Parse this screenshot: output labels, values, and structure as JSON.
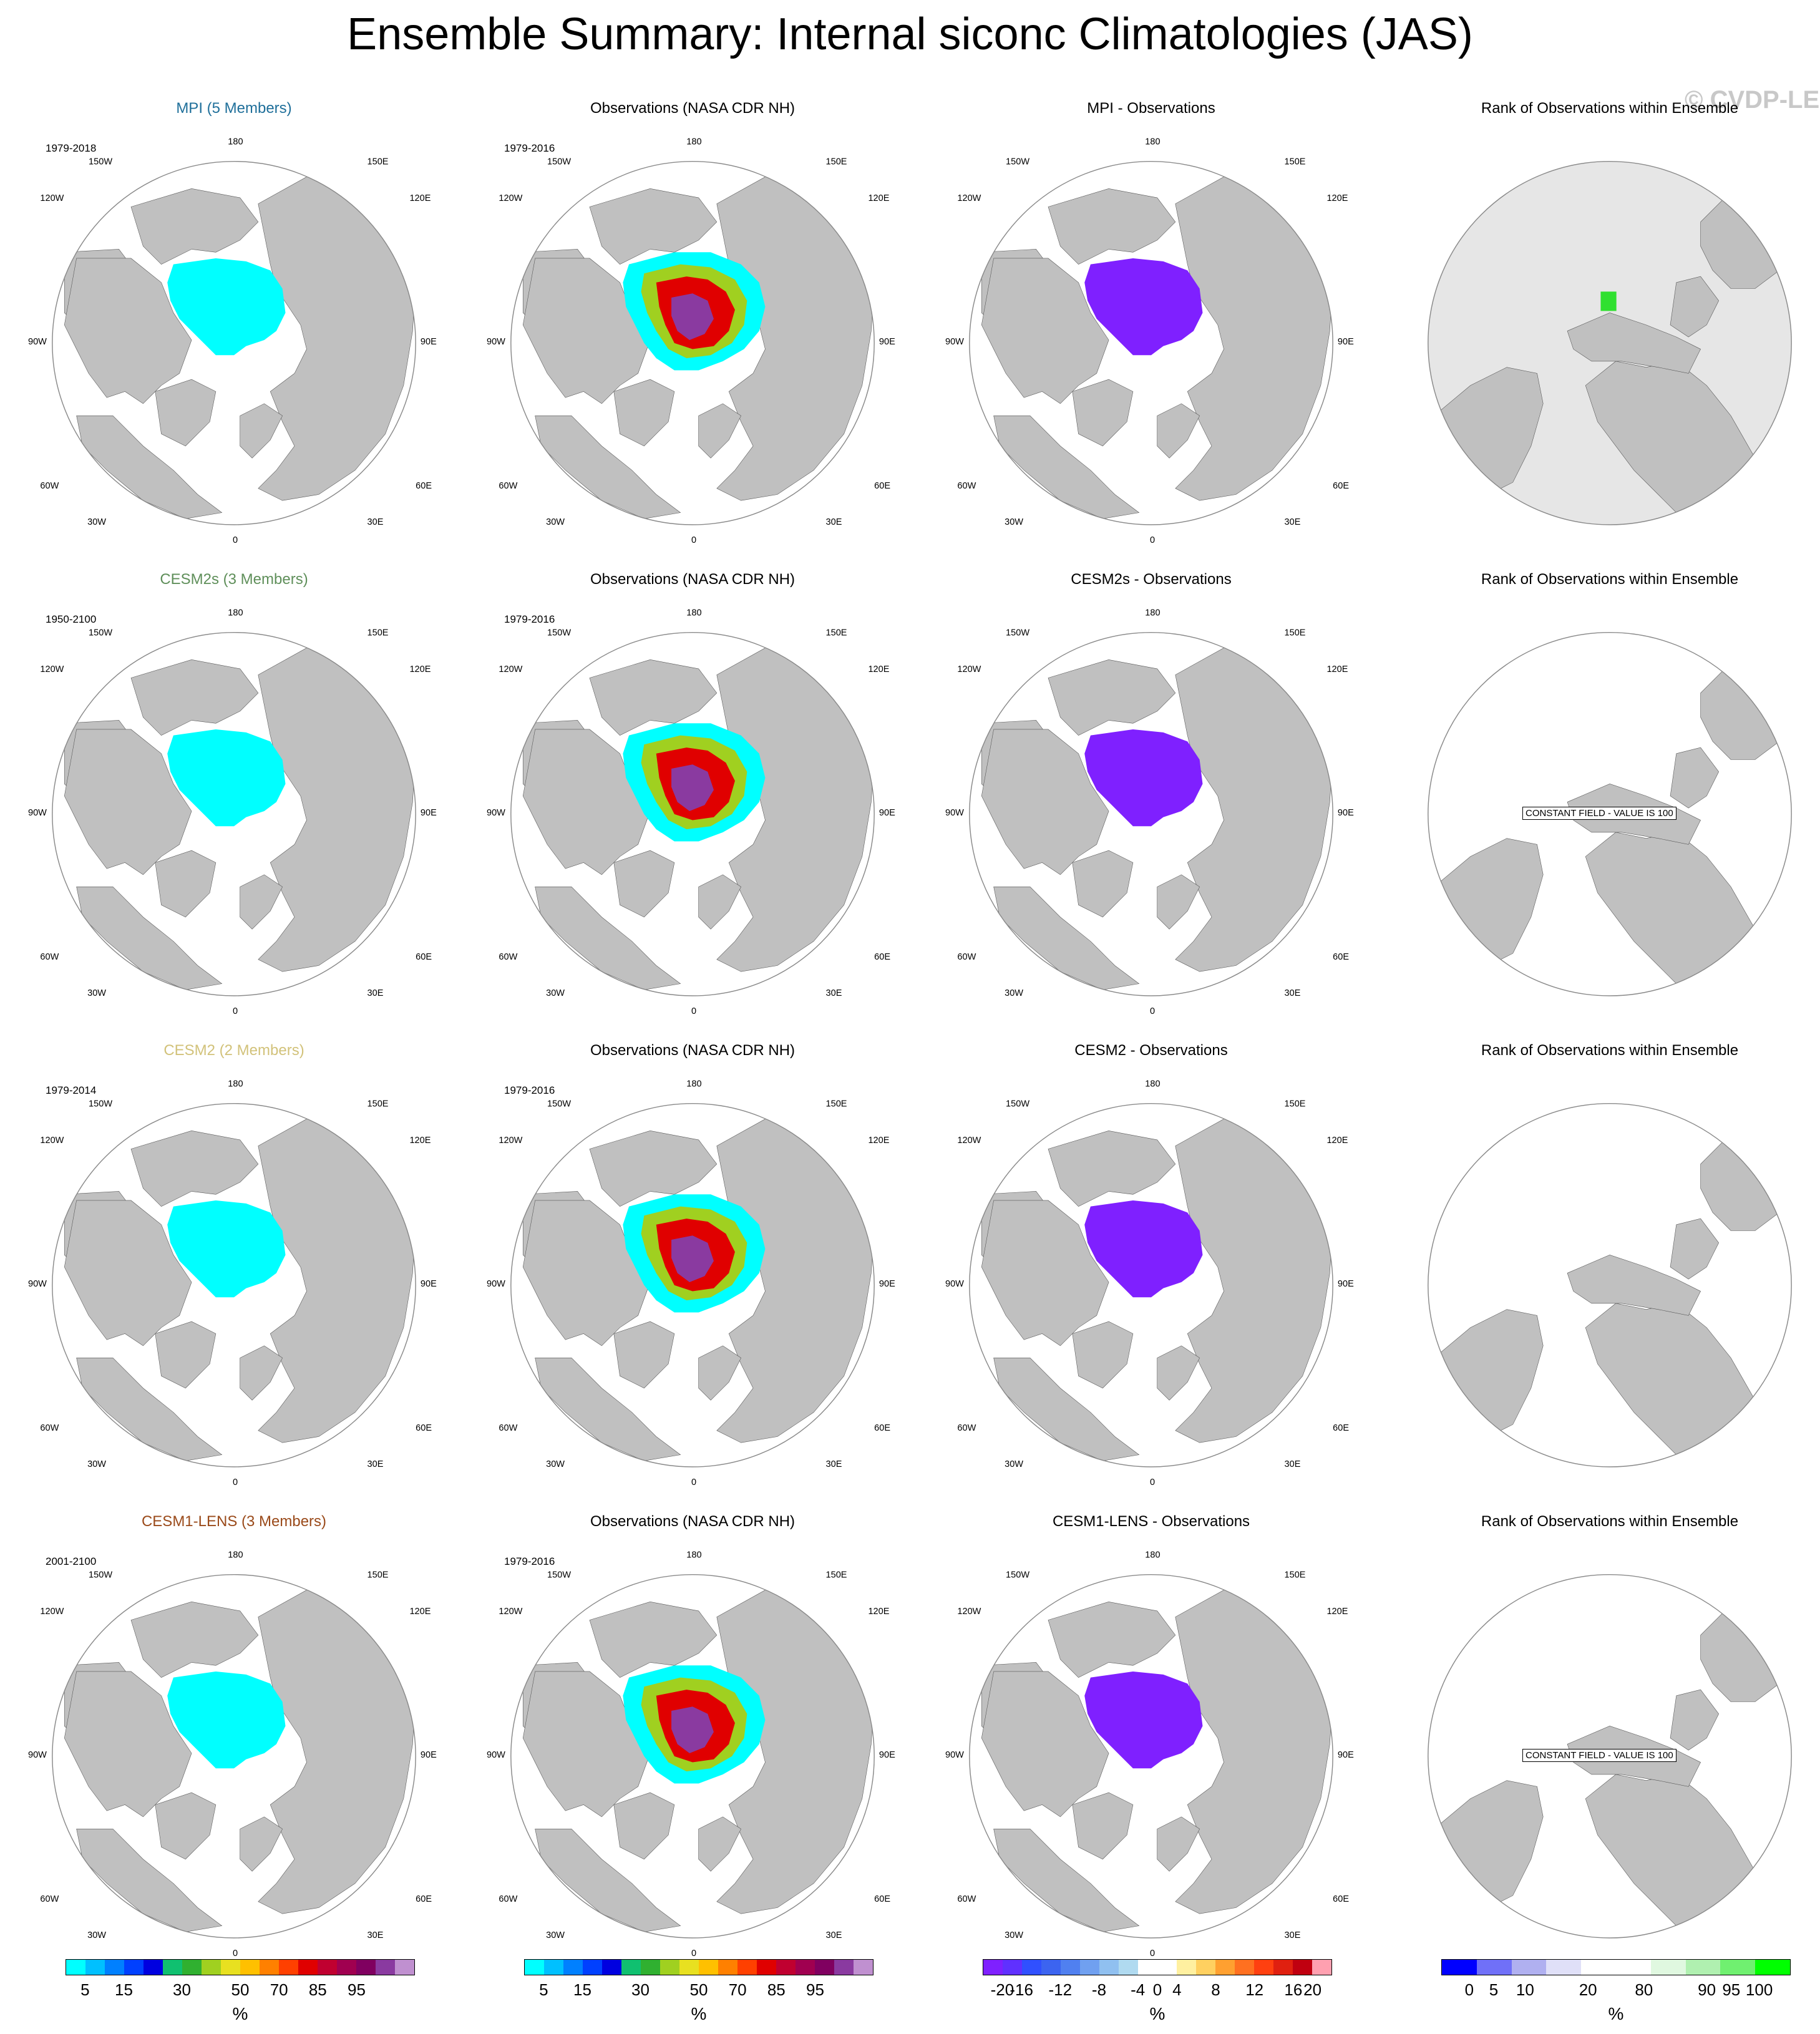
{
  "title": "Ensemble Summary: Internal siconc Climatologies (JAS)",
  "watermark": "© CVDP-LE",
  "lon_labels": {
    "top": "180",
    "ul1": "150W",
    "ur1": "150E",
    "ul2": "120W",
    "ur2": "120E",
    "l": "90W",
    "r": "90E",
    "ll2": "60W",
    "lr2": "60E",
    "ll1": "30W",
    "lr1": "30E",
    "bottom": "0"
  },
  "rows": [
    {
      "model": {
        "title": "MPI (5 Members)",
        "color": "#1f6f9a",
        "years": "1979-2018"
      },
      "obs": {
        "title": "Observations (NASA CDR NH)",
        "years": "1979-2016"
      },
      "diff": {
        "title": "MPI - Observations"
      },
      "rank": {
        "title": "Rank of Observations within Ensemble",
        "note": ""
      }
    },
    {
      "model": {
        "title": "CESM2s (3 Members)",
        "color": "#5f8f5a",
        "years": "1950-2100"
      },
      "obs": {
        "title": "Observations (NASA CDR NH)",
        "years": "1979-2016"
      },
      "diff": {
        "title": "CESM2s - Observations"
      },
      "rank": {
        "title": "Rank of Observations within Ensemble",
        "note": "CONSTANT FIELD - VALUE IS 100"
      }
    },
    {
      "model": {
        "title": "CESM2 (2 Members)",
        "color": "#d2c27a",
        "years": "1979-2014"
      },
      "obs": {
        "title": "Observations (NASA CDR NH)",
        "years": "1979-2016"
      },
      "diff": {
        "title": "CESM2 - Observations"
      },
      "rank": {
        "title": "Rank of Observations within Ensemble",
        "note": ""
      }
    },
    {
      "model": {
        "title": "CESM1-LENS (3 Members)",
        "color": "#9a4a1a",
        "years": "2001-2100"
      },
      "obs": {
        "title": "Observations (NASA CDR NH)",
        "years": "1979-2016"
      },
      "diff": {
        "title": "CESM1-LENS - Observations"
      },
      "rank": {
        "title": "Rank of Observations within Ensemble",
        "note": "CONSTANT FIELD - VALUE IS 100"
      }
    }
  ],
  "colorbars": [
    {
      "name": "siconc",
      "unit": "%",
      "colors": [
        "#00ffff",
        "#00c0ff",
        "#0080ff",
        "#0040ff",
        "#0000e0",
        "#10c070",
        "#30b030",
        "#a0d020",
        "#e8e020",
        "#ffc000",
        "#ff8000",
        "#ff4000",
        "#e00000",
        "#c00030",
        "#a00050",
        "#800060",
        "#8a3aa0",
        "#c090d0"
      ],
      "ticks": [
        {
          "label": "5",
          "pos": 0.056
        },
        {
          "label": "15",
          "pos": 0.167
        },
        {
          "label": "30",
          "pos": 0.333
        },
        {
          "label": "50",
          "pos": 0.5
        },
        {
          "label": "70",
          "pos": 0.611
        },
        {
          "label": "85",
          "pos": 0.722
        },
        {
          "label": "95",
          "pos": 0.833
        }
      ]
    },
    {
      "name": "siconc-obs",
      "unit": "%",
      "colors": [
        "#00ffff",
        "#00c0ff",
        "#0080ff",
        "#0040ff",
        "#0000e0",
        "#10c070",
        "#30b030",
        "#a0d020",
        "#e8e020",
        "#ffc000",
        "#ff8000",
        "#ff4000",
        "#e00000",
        "#c00030",
        "#a00050",
        "#800060",
        "#8a3aa0",
        "#c090d0"
      ],
      "ticks": [
        {
          "label": "5",
          "pos": 0.056
        },
        {
          "label": "15",
          "pos": 0.167
        },
        {
          "label": "30",
          "pos": 0.333
        },
        {
          "label": "50",
          "pos": 0.5
        },
        {
          "label": "70",
          "pos": 0.611
        },
        {
          "label": "85",
          "pos": 0.722
        },
        {
          "label": "95",
          "pos": 0.833
        }
      ]
    },
    {
      "name": "difference",
      "unit": "%",
      "colors": [
        "#7f20ff",
        "#6030ff",
        "#3050ff",
        "#3c64f0",
        "#5080f0",
        "#70a0f0",
        "#90c0f0",
        "#b0daf0",
        "#ffffff",
        "#ffffff",
        "#fff0a0",
        "#ffd060",
        "#ffa030",
        "#ff7020",
        "#ff4010",
        "#e02010",
        "#c00010",
        "#ffa0b0"
      ],
      "ticks": [
        {
          "label": "-20",
          "pos": 0.056
        },
        {
          "label": "-16",
          "pos": 0.111
        },
        {
          "label": "-12",
          "pos": 0.222
        },
        {
          "label": "-8",
          "pos": 0.333
        },
        {
          "label": "-4",
          "pos": 0.444
        },
        {
          "label": "0",
          "pos": 0.5
        },
        {
          "label": "4",
          "pos": 0.556
        },
        {
          "label": "8",
          "pos": 0.667
        },
        {
          "label": "12",
          "pos": 0.778
        },
        {
          "label": "16",
          "pos": 0.889
        },
        {
          "label": "20",
          "pos": 0.944
        }
      ]
    },
    {
      "name": "rank",
      "unit": "%",
      "colors": [
        "#0000ff",
        "#7070f8",
        "#b0b0f0",
        "#e0e0f8",
        "#ffffff",
        "#ffffff",
        "#e0f8e0",
        "#b0f0b0",
        "#70f070",
        "#00ff00"
      ],
      "ticks": [
        {
          "label": "0",
          "pos": 0.08
        },
        {
          "label": "5",
          "pos": 0.15
        },
        {
          "label": "10",
          "pos": 0.24
        },
        {
          "label": "20",
          "pos": 0.42
        },
        {
          "label": "80",
          "pos": 0.58
        },
        {
          "label": "90",
          "pos": 0.76
        },
        {
          "label": "95",
          "pos": 0.83
        },
        {
          "label": "100",
          "pos": 0.91
        }
      ]
    }
  ],
  "map_colors": {
    "land": "#c0c0c0",
    "ocean": "#ffffff",
    "globe_bg": "#e6e6e6",
    "ice_model": "#00ffff",
    "diff_ice": "#7f20ff",
    "rank_green": "#30e030"
  }
}
